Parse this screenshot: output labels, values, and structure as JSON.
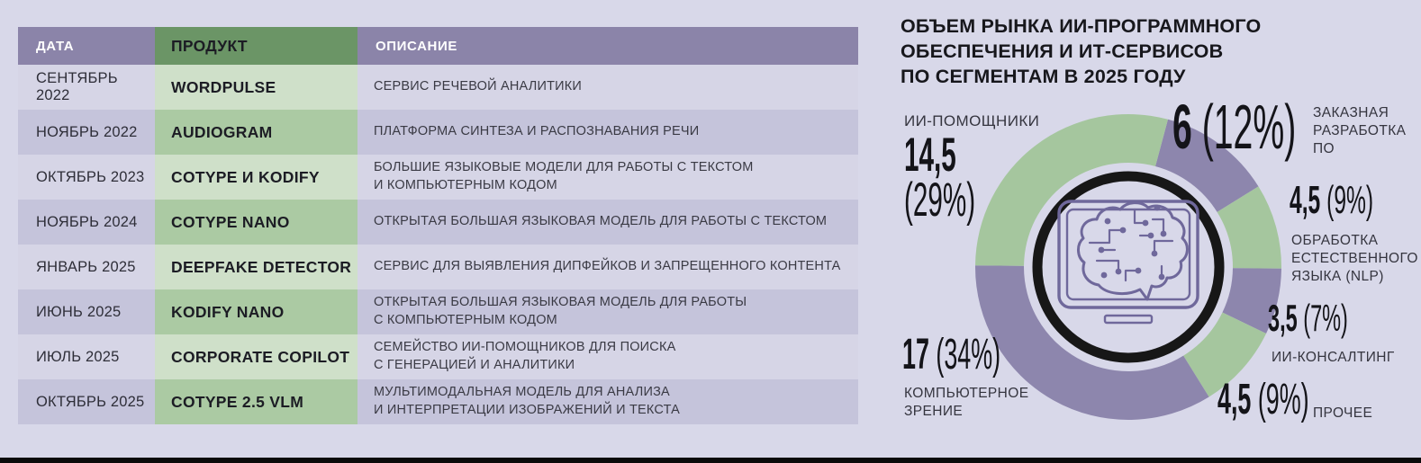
{
  "table": {
    "headers": [
      "ДАТА",
      "ПРОДУКТ",
      "ОПИСАНИЕ"
    ],
    "rows": [
      {
        "date": "СЕНТЯБРЬ 2022",
        "product": "WORDPULSE",
        "description": "СЕРВИС РЕЧЕВОЙ АНАЛИТИКИ"
      },
      {
        "date": "НОЯБРЬ 2022",
        "product": "AUDIOGRAM",
        "description": "ПЛАТФОРМА СИНТЕЗА И РАСПОЗНАВАНИЯ РЕЧИ"
      },
      {
        "date": "ОКТЯБРЬ 2023",
        "product": "COTYPE И KODIFY",
        "description": "БОЛЬШИЕ ЯЗЫКОВЫЕ МОДЕЛИ ДЛЯ РАБОТЫ С ТЕКСТОМ\nИ КОМПЬЮТЕРНЫМ КОДОМ"
      },
      {
        "date": "НОЯБРЬ 2024",
        "product": "COTYPE NANO",
        "description": "ОТКРЫТАЯ БОЛЬШАЯ ЯЗЫКОВАЯ МОДЕЛЬ ДЛЯ РАБОТЫ С ТЕКСТОМ"
      },
      {
        "date": "ЯНВАРЬ 2025",
        "product": "DEEPFAKE DETECTOR",
        "description": "СЕРВИС ДЛЯ ВЫЯВЛЕНИЯ ДИПФЕЙКОВ И ЗАПРЕЩЕННОГО КОНТЕНТА"
      },
      {
        "date": "ИЮНЬ 2025",
        "product": "KODIFY NANO",
        "description": "ОТКРЫТАЯ БОЛЬШАЯ ЯЗЫКОВАЯ МОДЕЛЬ ДЛЯ РАБОТЫ\nС КОМПЬЮТЕРНЫМ КОДОМ"
      },
      {
        "date": "ИЮЛЬ 2025",
        "product": "CORPORATE COPILOT",
        "description": "СЕМЕЙСТВО ИИ-ПОМОЩНИКОВ ДЛЯ ПОИСКА\nС ГЕНЕРАЦИЕЙ И АНАЛИТИКИ"
      },
      {
        "date": "ОКТЯБРЬ 2025",
        "product": "COTYPE 2.5 VLM",
        "description": "МУЛЬТИМОДАЛЬНАЯ МОДЕЛЬ ДЛЯ АНАЛИЗА\nИ ИНТЕРПРЕТАЦИИ ИЗОБРАЖЕНИЙ И ТЕКСТА"
      }
    ]
  },
  "chart_data": {
    "type": "pie",
    "variant": "donut",
    "title": "ОБЪЕМ РЫНКА ИИ-ПРОГРАММНОГО\nОБЕСПЕЧЕНИЯ И ИТ-СЕРВИСОВ\nПО СЕГМЕНТАМ В 2025 ГОДУ",
    "legend_position": "around-callouts",
    "start_angle_deg": 15,
    "clockwise": true,
    "colors": {
      "green": "#a5c69e",
      "purple": "#8d86ad"
    },
    "center_icon": "brain-circuit-monitor",
    "segments": [
      {
        "id": "custom-software-development",
        "label": "ЗАКАЗНАЯ\nРАЗРАБОТКА\nПО",
        "value": 6,
        "value_label": "6",
        "percent": 12,
        "percent_label": "(12%)",
        "color": "purple"
      },
      {
        "id": "nlp",
        "label": "ОБРАБОТКА\nЕСТЕСТВЕННОГО\nЯЗЫКА (NLP)",
        "value": 4.5,
        "value_label": "4,5",
        "percent": 9,
        "percent_label": "(9%)",
        "color": "green"
      },
      {
        "id": "ai-consulting",
        "label": "ИИ-КОНСАЛТИНГ",
        "value": 3.5,
        "value_label": "3,5",
        "percent": 7,
        "percent_label": "(7%)",
        "color": "purple"
      },
      {
        "id": "other",
        "label": "ПРОЧЕЕ",
        "value": 4.5,
        "value_label": "4,5",
        "percent": 9,
        "percent_label": "(9%)",
        "color": "green"
      },
      {
        "id": "computer-vision",
        "label": "КОМПЬЮТЕРНОЕ\nЗРЕНИЕ",
        "value": 17,
        "value_label": "17",
        "percent": 34,
        "percent_label": "(34%)",
        "color": "purple"
      },
      {
        "id": "ai-assistants",
        "label": "ИИ-ПОМОЩНИКИ",
        "value": 14.5,
        "value_label": "14,5",
        "percent": 29,
        "percent_label": "(29%)",
        "color": "green"
      }
    ]
  },
  "style_colors": {
    "page_bg": "#d8d8e9",
    "table_header_purple": "#8b84a9",
    "table_header_green": "#6b9566",
    "row_light": "#d6d5e6",
    "row_dark": "#c5c4db",
    "product_light": "#cfe0c9",
    "product_dark": "#abcaa3",
    "ring_black": "#171717",
    "icon_purple": "#6f689b",
    "bottom_bar": "#0a0a0a"
  }
}
